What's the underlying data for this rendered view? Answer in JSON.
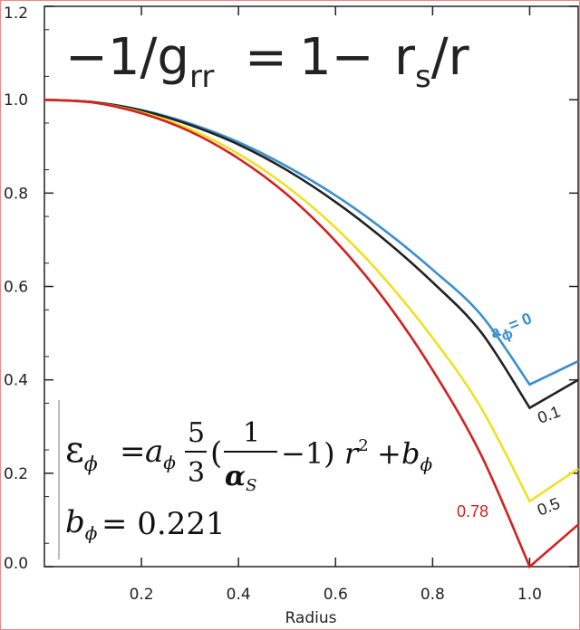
{
  "title": {
    "lhs": "−1/g",
    "lhs_sub": "rr",
    "eq": "=",
    "rhs": "1−",
    "rhs_r": "r",
    "rhs_sub": "s",
    "rhs_tail": "/r"
  },
  "equation": {
    "eps": "ε",
    "phi": "ϕ",
    "equals": "=",
    "a": "a",
    "frac1_num": "5",
    "frac1_den": "3",
    "open": "(",
    "frac2_num": "1",
    "alpha": "α",
    "alpha_sub": "S",
    "minus_one": "−1)",
    "r": "r",
    "r_exp": "2",
    "plus": "+",
    "b": "b",
    "b_line_value": "= 0.221"
  },
  "annotations": {
    "a0_prefix": "a",
    "a0_sub": "ϕ",
    "a0_value": "= 0",
    "label_01": "0.1",
    "label_05": "0.5",
    "label_078": "0.78"
  },
  "chart_data": {
    "type": "line",
    "xlabel": "Radius",
    "ylabel": "",
    "xlim": [
      0.0,
      1.1
    ],
    "ylim": [
      0.0,
      1.2
    ],
    "xticks": [
      0.2,
      0.4,
      0.6,
      0.8,
      1.0
    ],
    "yticks": [
      0.0,
      0.2,
      0.4,
      0.6,
      0.8,
      1.0,
      1.2
    ],
    "xtick_labels": [
      "0.2",
      "0.4",
      "0.6",
      "0.8",
      "1.0"
    ],
    "ytick_labels": [
      "0.0",
      "0.2",
      "0.4",
      "0.6",
      "0.8",
      "1.0",
      "1.2"
    ],
    "grid": false,
    "series": [
      {
        "color": "#3a8fd0",
        "x": [
          0.0,
          0.1,
          0.2,
          0.3,
          0.4,
          0.5,
          0.6,
          0.7,
          0.8,
          0.9,
          1.0,
          1.1
        ],
        "y": [
          1.0,
          0.995,
          0.978,
          0.949,
          0.909,
          0.857,
          0.795,
          0.721,
          0.636,
          0.539,
          0.39,
          0.44
        ]
      },
      {
        "color": "#222222",
        "x": [
          0.0,
          0.1,
          0.2,
          0.3,
          0.4,
          0.5,
          0.6,
          0.7,
          0.8,
          0.9,
          1.0,
          1.1
        ],
        "y": [
          1.0,
          0.995,
          0.977,
          0.946,
          0.904,
          0.849,
          0.781,
          0.701,
          0.609,
          0.502,
          0.34,
          0.4
        ]
      },
      {
        "color": "#f0e020",
        "x": [
          0.0,
          0.1,
          0.2,
          0.3,
          0.4,
          0.5,
          0.6,
          0.7,
          0.8,
          0.9,
          1.0,
          1.1
        ],
        "y": [
          1.0,
          0.994,
          0.973,
          0.937,
          0.884,
          0.814,
          0.726,
          0.618,
          0.49,
          0.34,
          0.14,
          0.21
        ]
      },
      {
        "color": "#d42020",
        "x": [
          0.0,
          0.1,
          0.2,
          0.3,
          0.4,
          0.5,
          0.6,
          0.7,
          0.8,
          0.9,
          1.0,
          1.1
        ],
        "y": [
          1.0,
          0.994,
          0.971,
          0.932,
          0.874,
          0.797,
          0.697,
          0.573,
          0.421,
          0.239,
          0.0,
          0.09
        ]
      }
    ]
  }
}
